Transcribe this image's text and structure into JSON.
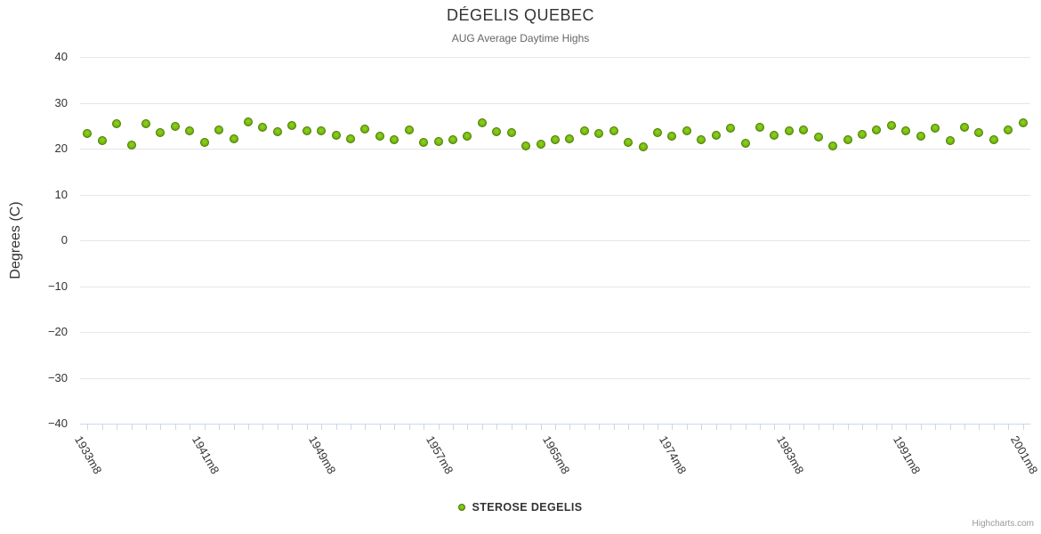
{
  "chart_data": {
    "type": "scatter",
    "title": "DÉGELIS QUEBEC",
    "subtitle": "AUG Average Daytime Highs",
    "xlabel": "",
    "ylabel": "Degrees (C)",
    "ylim": [
      -40,
      40
    ],
    "y_ticks": [
      40,
      30,
      20,
      10,
      0,
      -10,
      -20,
      -30,
      -40
    ],
    "grid": "horizontal",
    "legend_position": "bottom-center",
    "x_tick_labels": [
      {
        "index": 0,
        "label": "1933m8"
      },
      {
        "index": 8,
        "label": "1941m8"
      },
      {
        "index": 16,
        "label": "1949m8"
      },
      {
        "index": 24,
        "label": "1957m8"
      },
      {
        "index": 32,
        "label": "1965m8"
      },
      {
        "index": 40,
        "label": "1974m8"
      },
      {
        "index": 48,
        "label": "1983m8"
      },
      {
        "index": 56,
        "label": "1991m8"
      },
      {
        "index": 64,
        "label": "2001m8"
      }
    ],
    "series": [
      {
        "name": "STEROSE DEGELIS",
        "marker": "circle",
        "values": [
          23.3,
          21.7,
          25.4,
          20.7,
          25.4,
          23.5,
          24.8,
          23.8,
          21.4,
          24.0,
          22.2,
          25.9,
          24.6,
          23.6,
          25.1,
          23.9,
          23.9,
          23.0,
          22.2,
          24.3,
          22.8,
          21.9,
          24.1,
          21.4,
          21.5,
          21.9,
          22.7,
          25.6,
          23.6,
          23.5,
          20.5,
          20.9,
          21.9,
          22.2,
          23.8,
          23.3,
          23.8,
          21.4,
          20.3,
          23.4,
          22.7,
          23.8,
          22.0,
          22.9,
          24.4,
          21.2,
          24.7,
          23.0,
          23.8,
          24.1,
          22.5,
          20.5,
          21.9,
          23.1,
          24.1,
          25.1,
          23.9,
          22.8,
          24.4,
          21.8,
          24.7,
          23.5,
          22.0,
          24.1,
          25.7
        ]
      }
    ]
  },
  "legend": {
    "series_label": "STEROSE DEGELIS"
  },
  "credits": {
    "label": "Highcharts.com"
  },
  "colors": {
    "marker_fill": "#76bb0a",
    "marker_fill_light": "#8fd12c",
    "marker_fill_dark": "#578e02",
    "marker_border": "#4c7b04",
    "grid_line": "#e6e6e6",
    "axis_line": "#ccd6eb",
    "title_text": "#333333",
    "subtitle_text": "#666666",
    "axis_label_text": "#333333",
    "legend_text": "#333333",
    "credits_text": "#999999"
  }
}
